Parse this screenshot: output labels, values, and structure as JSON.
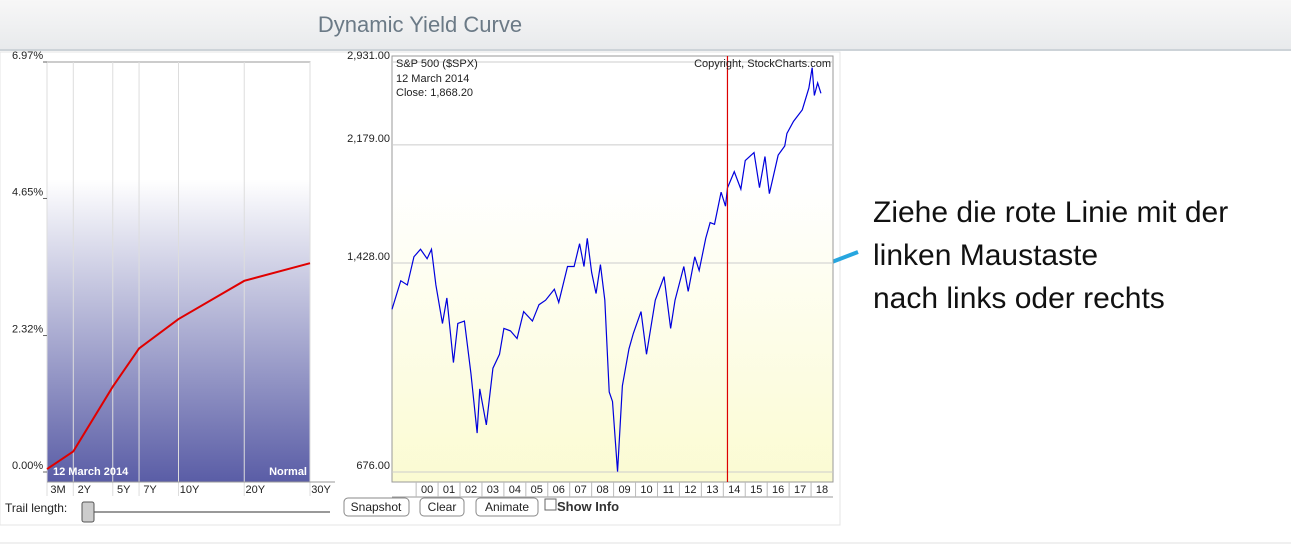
{
  "header": {
    "title": "Dynamic Yield Curve"
  },
  "chart_data": [
    {
      "type": "line",
      "categories": [
        "3M",
        "2Y",
        "5Y",
        "7Y",
        "10Y",
        "20Y",
        "30Y"
      ],
      "values": [
        0.05,
        0.35,
        1.45,
        2.1,
        2.6,
        3.25,
        3.55
      ],
      "color": "#e00000",
      "ylim": [
        0,
        6.97
      ],
      "yticks": [
        {
          "value": 0,
          "label": "0.00%"
        },
        {
          "value": 2.32,
          "label": "2.32%"
        },
        {
          "value": 4.65,
          "label": "4.65%"
        },
        {
          "value": 6.97,
          "label": "6.97%"
        }
      ],
      "date_label": "12  March 2014",
      "curve_label": "Normal"
    },
    {
      "type": "line",
      "title": "S&P 500 ($SPX)",
      "date_label": "12  March 2014",
      "close_label": "Close: 1,868.20",
      "copyright": "Copyright, StockCharts.com",
      "log_scale": true,
      "color": "#0000dd",
      "x": [
        1998.9,
        1999.3,
        1999.6,
        1999.9,
        2000.2,
        2000.5,
        2000.7,
        2000.9,
        2001.2,
        2001.4,
        2001.7,
        2001.9,
        2002.2,
        2002.5,
        2002.78,
        2002.9,
        2003.2,
        2003.5,
        2003.8,
        2004.0,
        2004.3,
        2004.6,
        2004.9,
        2005.3,
        2005.6,
        2005.9,
        2006.3,
        2006.5,
        2006.9,
        2007.2,
        2007.45,
        2007.65,
        2007.8,
        2008.0,
        2008.2,
        2008.4,
        2008.6,
        2008.8,
        2008.95,
        2009.18,
        2009.4,
        2009.7,
        2009.9,
        2010.25,
        2010.5,
        2010.9,
        2011.3,
        2011.6,
        2011.8,
        2012.2,
        2012.4,
        2012.7,
        2012.9,
        2013.2,
        2013.4,
        2013.6,
        2013.9,
        2014.1,
        2014.19,
        2014.5,
        2014.8,
        2015.0,
        2015.4,
        2015.65,
        2015.9,
        2016.1,
        2016.5,
        2016.8,
        2016.9,
        2017.2,
        2017.6,
        2017.9,
        2018.05,
        2018.15,
        2018.3,
        2018.45
      ],
      "values": [
        1210,
        1340,
        1320,
        1460,
        1500,
        1450,
        1500,
        1320,
        1150,
        1260,
        1000,
        1150,
        1160,
        960,
        777,
        910,
        800,
        980,
        1030,
        1130,
        1120,
        1090,
        1200,
        1160,
        1230,
        1250,
        1300,
        1240,
        1410,
        1410,
        1530,
        1410,
        1560,
        1380,
        1280,
        1420,
        1250,
        900,
        870,
        677,
        920,
        1050,
        1110,
        1200,
        1030,
        1250,
        1360,
        1130,
        1250,
        1410,
        1290,
        1460,
        1390,
        1560,
        1650,
        1640,
        1840,
        1750,
        1868,
        1980,
        1860,
        2060,
        2120,
        1870,
        2090,
        1830,
        2100,
        2170,
        2270,
        2370,
        2470,
        2670,
        2872,
        2600,
        2720,
        2620
      ],
      "xlim": [
        1998.9,
        2019
      ],
      "xticks": [
        {
          "value": 2000,
          "label": "00"
        },
        {
          "value": 2001,
          "label": "01"
        },
        {
          "value": 2002,
          "label": "02"
        },
        {
          "value": 2003,
          "label": "03"
        },
        {
          "value": 2004,
          "label": "04"
        },
        {
          "value": 2005,
          "label": "05"
        },
        {
          "value": 2006,
          "label": "06"
        },
        {
          "value": 2007,
          "label": "07"
        },
        {
          "value": 2008,
          "label": "08"
        },
        {
          "value": 2009,
          "label": "09"
        },
        {
          "value": 2010,
          "label": "10"
        },
        {
          "value": 2011,
          "label": "11"
        },
        {
          "value": 2012,
          "label": "12"
        },
        {
          "value": 2013,
          "label": "13"
        },
        {
          "value": 2014,
          "label": "14"
        },
        {
          "value": 2015,
          "label": "15"
        },
        {
          "value": 2016,
          "label": "16"
        },
        {
          "value": 2017,
          "label": "17"
        },
        {
          "value": 2018,
          "label": "18"
        }
      ],
      "ylim": [
        676,
        2931
      ],
      "yticks": [
        {
          "value": 676,
          "label": "676.00"
        },
        {
          "value": 1428,
          "label": "1,428.00"
        },
        {
          "value": 2179,
          "label": "2,179.00"
        },
        {
          "value": 2931,
          "label": "2,931.00"
        }
      ],
      "marker": {
        "x": 2014.19,
        "color": "#dd0000"
      }
    }
  ],
  "controls": {
    "trail_label": "Trail length:",
    "buttons": [
      "Snapshot",
      "Clear",
      "Animate"
    ],
    "checkbox": "Show Info"
  },
  "callout": {
    "lines": [
      "Ziehe die rote Linie mit der",
      "linken Maustaste",
      "nach links oder rechts"
    ]
  }
}
